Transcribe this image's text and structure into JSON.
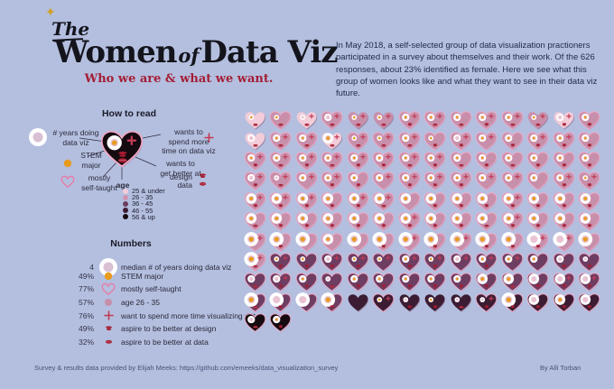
{
  "palette": {
    "background": "#b4bfdf",
    "title": "#14141c",
    "subtitle": "#a41e35",
    "body_text": "#1f2847",
    "gold": "#e89b1c",
    "plus": "#c23a55",
    "lips": "#a61b30",
    "glow": "#f2a8c4",
    "ring_hole": "#e9c3d4",
    "white": "#ffffff",
    "shadow": "#7c4261",
    "age_colors": [
      "#f2ccd9",
      "#c88fab",
      "#6e3d62",
      "#3b1c33",
      "#140a10"
    ]
  },
  "header": {
    "sparkle_icon": "sparkle-icon",
    "the": "The",
    "title_women": "Women",
    "title_of": "of",
    "title_dataviz": "Data Viz",
    "subtitle": "Who we are & what we want."
  },
  "intro": {
    "text": "In May 2018, a self-selected group of data visualization practioners participated in a survey about themselves and their work. Of the 626 responses, about 23% identified as female. Here we see what this group of women looks like and what they want to see in their data viz future."
  },
  "how_to_read": {
    "title": "How to read",
    "years_label": "# years doing\ndata viz",
    "stem_label": "STEM\nmajor",
    "self_taught_label": "mostly\nself-taught",
    "more_time_label": "wants to\nspend more\ntime on data viz",
    "better_label": "wants to\nget better at",
    "design_label": "design",
    "data_label": "data",
    "age_label": "age",
    "example_heart": [
      5,
      2,
      1,
      1,
      3,
      1
    ]
  },
  "age_groups": [
    {
      "label": "25 & under",
      "color": "#f2ccd9"
    },
    {
      "label": "26 - 35",
      "color": "#cf93b0"
    },
    {
      "label": "36 - 45",
      "color": "#6e3d62"
    },
    {
      "label": "46 - 55",
      "color": "#3b1c33"
    },
    {
      "label": "56 & up",
      "color": "#140a10"
    }
  ],
  "numbers": {
    "title": "Numbers",
    "rows": [
      {
        "value": "4",
        "icon": "ring",
        "label": "median # of years doing data viz"
      },
      {
        "value": "49%",
        "icon": "stem",
        "label": "STEM major"
      },
      {
        "value": "77%",
        "icon": "self",
        "label": "mostly self-taught"
      },
      {
        "value": "57%",
        "icon": "age-dot",
        "label": "age 26 - 35"
      },
      {
        "value": "76%",
        "icon": "plus",
        "label": "want to spend more time visualizing data"
      },
      {
        "value": "49%",
        "icon": "lips-design",
        "label": "aspire to be better at design"
      },
      {
        "value": "32%",
        "icon": "lips-data",
        "label": "aspire to be better at data"
      }
    ]
  },
  "chart_data": {
    "type": "table",
    "title": "The Women of Data Viz — Who we are & what we want.",
    "unit_chart": {
      "units": 142,
      "columns": 14,
      "unit": "one woman respondent (heart glyph)"
    },
    "stats": [
      {
        "metric": "median # of years doing data viz",
        "value": 4
      },
      {
        "metric": "STEM major",
        "value": "49%"
      },
      {
        "metric": "mostly self-taught",
        "value": "77%"
      },
      {
        "metric": "age 26 - 35",
        "value": "57%"
      },
      {
        "metric": "want to spend more time visualizing data",
        "value": "76%"
      },
      {
        "metric": "aspire to be better at design",
        "value": "49%"
      },
      {
        "metric": "aspire to be better at data",
        "value": "32%"
      }
    ],
    "age_legend": [
      "25 & under",
      "26 - 35",
      "36 - 45",
      "46 - 55",
      "56 & up"
    ],
    "survey": {
      "total_responses": 626,
      "female_share": "23%",
      "date": "May 2018"
    }
  },
  "grid": {
    "columns": 14,
    "heart_spec_format": [
      "age_group_1to5",
      "ring_size_0to4",
      "stem_major",
      "wants_more_time",
      "lips_0none_1design_2data_3both",
      "self_taught_glow"
    ],
    "hearts": [
      [
        1,
        1,
        1,
        0,
        2,
        0
      ],
      [
        2,
        1,
        1,
        0,
        2,
        1
      ],
      [
        1,
        1,
        0,
        1,
        2,
        0
      ],
      [
        2,
        2,
        0,
        1,
        2,
        1
      ],
      [
        2,
        1,
        1,
        1,
        2,
        0
      ],
      [
        2,
        1,
        1,
        1,
        2,
        0
      ],
      [
        2,
        2,
        1,
        1,
        1,
        1
      ],
      [
        2,
        2,
        1,
        1,
        2,
        1
      ],
      [
        2,
        2,
        1,
        0,
        2,
        1
      ],
      [
        2,
        2,
        1,
        1,
        1,
        1
      ],
      [
        2,
        2,
        1,
        1,
        2,
        1
      ],
      [
        2,
        1,
        1,
        1,
        2,
        0
      ],
      [
        1,
        2,
        0,
        1,
        1,
        0
      ],
      [
        2,
        2,
        1,
        0,
        1,
        1
      ],
      [
        1,
        2,
        0,
        0,
        2,
        0
      ],
      [
        2,
        2,
        1,
        1,
        2,
        1
      ],
      [
        2,
        2,
        1,
        1,
        2,
        1
      ],
      [
        1,
        3,
        1,
        1,
        2,
        0
      ],
      [
        2,
        1,
        1,
        1,
        2,
        1
      ],
      [
        2,
        1,
        1,
        1,
        2,
        1
      ],
      [
        2,
        2,
        1,
        1,
        2,
        1
      ],
      [
        2,
        1,
        1,
        0,
        1,
        1
      ],
      [
        2,
        2,
        0,
        1,
        1,
        1
      ],
      [
        2,
        2,
        1,
        1,
        0,
        1
      ],
      [
        2,
        2,
        1,
        0,
        1,
        1
      ],
      [
        2,
        2,
        1,
        1,
        1,
        1
      ],
      [
        2,
        2,
        1,
        1,
        1,
        1
      ],
      [
        2,
        2,
        1,
        0,
        1,
        1
      ],
      [
        2,
        2,
        1,
        1,
        1,
        1
      ],
      [
        2,
        2,
        1,
        1,
        2,
        1
      ],
      [
        2,
        2,
        1,
        1,
        1,
        1
      ],
      [
        2,
        2,
        1,
        1,
        2,
        1
      ],
      [
        2,
        2,
        1,
        1,
        1,
        1
      ],
      [
        2,
        2,
        1,
        1,
        1,
        1
      ],
      [
        2,
        2,
        1,
        1,
        2,
        1
      ],
      [
        2,
        2,
        1,
        1,
        1,
        1
      ],
      [
        2,
        2,
        1,
        0,
        2,
        1
      ],
      [
        2,
        2,
        1,
        0,
        1,
        1
      ],
      [
        2,
        2,
        1,
        0,
        2,
        1
      ],
      [
        2,
        2,
        1,
        0,
        1,
        1
      ],
      [
        2,
        2,
        1,
        0,
        1,
        1
      ],
      [
        2,
        2,
        1,
        0,
        1,
        1
      ],
      [
        2,
        2,
        0,
        1,
        1,
        1
      ],
      [
        2,
        1,
        0,
        1,
        2,
        1
      ],
      [
        2,
        2,
        1,
        1,
        0,
        1
      ],
      [
        2,
        2,
        1,
        1,
        1,
        1
      ],
      [
        2,
        2,
        1,
        0,
        1,
        1
      ],
      [
        2,
        2,
        1,
        1,
        0,
        1
      ],
      [
        2,
        2,
        1,
        1,
        1,
        1
      ],
      [
        2,
        2,
        1,
        1,
        1,
        1
      ],
      [
        2,
        2,
        1,
        1,
        1,
        1
      ],
      [
        2,
        2,
        1,
        1,
        0,
        1
      ],
      [
        2,
        2,
        1,
        1,
        0,
        1
      ],
      [
        2,
        2,
        1,
        0,
        0,
        1
      ],
      [
        2,
        2,
        1,
        1,
        1,
        1
      ],
      [
        2,
        1,
        1,
        1,
        1,
        1
      ],
      [
        2,
        3,
        1,
        1,
        1,
        1
      ],
      [
        2,
        3,
        1,
        1,
        1,
        1
      ],
      [
        2,
        3,
        1,
        1,
        1,
        1
      ],
      [
        2,
        3,
        1,
        0,
        1,
        1
      ],
      [
        2,
        3,
        1,
        1,
        1,
        1
      ],
      [
        2,
        3,
        1,
        1,
        2,
        1
      ],
      [
        2,
        3,
        1,
        0,
        0,
        1
      ],
      [
        2,
        3,
        1,
        0,
        1,
        1
      ],
      [
        2,
        3,
        1,
        0,
        1,
        1
      ],
      [
        2,
        3,
        1,
        0,
        1,
        1
      ],
      [
        2,
        3,
        1,
        1,
        1,
        1
      ],
      [
        2,
        3,
        1,
        0,
        1,
        1
      ],
      [
        2,
        3,
        1,
        0,
        1,
        1
      ],
      [
        2,
        3,
        1,
        0,
        1,
        1
      ],
      [
        2,
        3,
        1,
        0,
        2,
        1
      ],
      [
        2,
        3,
        1,
        0,
        1,
        1
      ],
      [
        2,
        3,
        1,
        0,
        1,
        1
      ],
      [
        2,
        3,
        1,
        0,
        1,
        1
      ],
      [
        2,
        3,
        1,
        0,
        1,
        1
      ],
      [
        2,
        3,
        1,
        0,
        1,
        1
      ],
      [
        2,
        3,
        1,
        1,
        1,
        1
      ],
      [
        2,
        3,
        1,
        0,
        1,
        1
      ],
      [
        2,
        3,
        1,
        0,
        1,
        1
      ],
      [
        2,
        3,
        1,
        0,
        2,
        1
      ],
      [
        2,
        3,
        1,
        1,
        1,
        1
      ],
      [
        2,
        3,
        1,
        0,
        1,
        1
      ],
      [
        2,
        3,
        1,
        0,
        1,
        1
      ],
      [
        2,
        3,
        1,
        0,
        1,
        1
      ],
      [
        2,
        4,
        1,
        1,
        0,
        1
      ],
      [
        2,
        4,
        1,
        0,
        1,
        1
      ],
      [
        2,
        4,
        1,
        0,
        0,
        1
      ],
      [
        2,
        3,
        1,
        0,
        0,
        1
      ],
      [
        2,
        4,
        1,
        0,
        0,
        1
      ],
      [
        2,
        4,
        1,
        0,
        1,
        1
      ],
      [
        2,
        4,
        1,
        1,
        0,
        1
      ],
      [
        2,
        4,
        1,
        0,
        1,
        1
      ],
      [
        2,
        4,
        1,
        1,
        0,
        1
      ],
      [
        2,
        4,
        1,
        0,
        1,
        1
      ],
      [
        2,
        4,
        1,
        0,
        1,
        1
      ],
      [
        2,
        4,
        0,
        1,
        1,
        1
      ],
      [
        2,
        4,
        0,
        1,
        0,
        1
      ],
      [
        2,
        4,
        1,
        0,
        0,
        1
      ],
      [
        2,
        4,
        1,
        1,
        2,
        1
      ],
      [
        3,
        1,
        1,
        1,
        1,
        1
      ],
      [
        3,
        1,
        1,
        0,
        1,
        1
      ],
      [
        3,
        2,
        0,
        1,
        1,
        1
      ],
      [
        3,
        1,
        1,
        1,
        1,
        1
      ],
      [
        3,
        1,
        1,
        1,
        0,
        1
      ],
      [
        3,
        2,
        1,
        1,
        1,
        1
      ],
      [
        3,
        1,
        1,
        1,
        1,
        1
      ],
      [
        3,
        2,
        0,
        1,
        0,
        1
      ],
      [
        3,
        2,
        1,
        1,
        1,
        1
      ],
      [
        3,
        2,
        1,
        1,
        0,
        1
      ],
      [
        3,
        2,
        1,
        0,
        0,
        1
      ],
      [
        3,
        2,
        0,
        0,
        1,
        1
      ],
      [
        3,
        1,
        0,
        0,
        1,
        1
      ],
      [
        3,
        2,
        0,
        0,
        2,
        1
      ],
      [
        3,
        2,
        0,
        1,
        1,
        1
      ],
      [
        3,
        2,
        1,
        0,
        1,
        1
      ],
      [
        3,
        1,
        0,
        0,
        2,
        1
      ],
      [
        3,
        2,
        1,
        0,
        1,
        1
      ],
      [
        3,
        2,
        1,
        0,
        1,
        1
      ],
      [
        3,
        2,
        1,
        0,
        1,
        1
      ],
      [
        3,
        2,
        1,
        0,
        1,
        1
      ],
      [
        3,
        2,
        1,
        0,
        1,
        1
      ],
      [
        3,
        3,
        1,
        0,
        1,
        1
      ],
      [
        3,
        3,
        1,
        0,
        2,
        1
      ],
      [
        3,
        3,
        0,
        0,
        1,
        1
      ],
      [
        3,
        3,
        0,
        1,
        1,
        1
      ],
      [
        3,
        3,
        0,
        1,
        1,
        1
      ],
      [
        3,
        4,
        1,
        0,
        2,
        1
      ],
      [
        3,
        4,
        0,
        0,
        1,
        1
      ],
      [
        3,
        4,
        0,
        0,
        0,
        1
      ],
      [
        3,
        4,
        1,
        0,
        1,
        1
      ],
      [
        4,
        0,
        0,
        0,
        0,
        0
      ],
      [
        4,
        1,
        1,
        1,
        0,
        1
      ],
      [
        4,
        1,
        0,
        0,
        1,
        0
      ],
      [
        4,
        1,
        1,
        0,
        1,
        0
      ],
      [
        4,
        1,
        0,
        0,
        2,
        0
      ],
      [
        4,
        1,
        0,
        1,
        1,
        1
      ],
      [
        4,
        4,
        1,
        0,
        1,
        1
      ],
      [
        4,
        3,
        0,
        0,
        1,
        1
      ],
      [
        4,
        3,
        1,
        0,
        1,
        1
      ],
      [
        4,
        3,
        0,
        0,
        1,
        1
      ],
      [
        5,
        2,
        0,
        0,
        2,
        1
      ],
      [
        5,
        2,
        1,
        0,
        1,
        1
      ]
    ]
  },
  "footer": {
    "source": "Survey & results data provided by Elijah Meeks: https://github.com/emeeks/data_visualization_survey",
    "byline": "By Alli Torban"
  }
}
